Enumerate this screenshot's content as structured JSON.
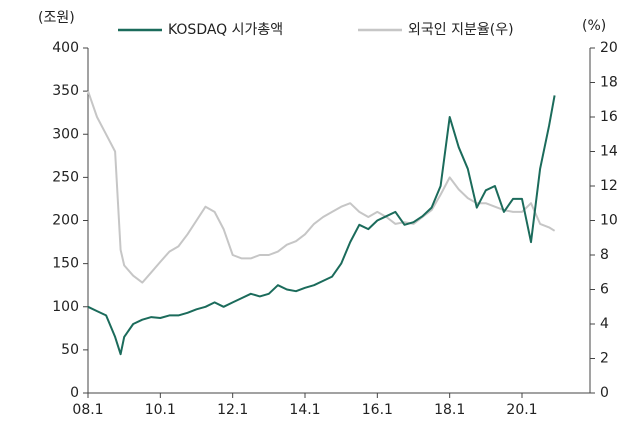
{
  "chart_data": {
    "type": "line",
    "y_label": "(조원)",
    "y2_label": "(%)",
    "x": [
      2008,
      2008.25,
      2008.5,
      2008.75,
      2008.9,
      2009,
      2009.25,
      2009.5,
      2009.75,
      2010,
      2010.25,
      2010.5,
      2010.75,
      2011,
      2011.25,
      2011.5,
      2011.75,
      2012,
      2012.25,
      2012.5,
      2012.75,
      2013,
      2013.25,
      2013.5,
      2013.75,
      2014,
      2014.25,
      2014.5,
      2014.75,
      2015,
      2015.25,
      2015.5,
      2015.75,
      2016,
      2016.25,
      2016.5,
      2016.75,
      2017,
      2017.25,
      2017.5,
      2017.75,
      2018,
      2018.25,
      2018.5,
      2018.75,
      2019,
      2019.25,
      2019.5,
      2019.75,
      2020,
      2020.25,
      2020.5,
      2020.75,
      2020.9
    ],
    "series": [
      {
        "name": "KOSDAQ 시가총액",
        "color": "#1b6b5b",
        "values": [
          100,
          95,
          90,
          65,
          45,
          65,
          80,
          85,
          88,
          87,
          90,
          90,
          93,
          97,
          100,
          105,
          100,
          105,
          110,
          115,
          112,
          115,
          125,
          120,
          118,
          122,
          125,
          130,
          135,
          150,
          175,
          195,
          190,
          200,
          205,
          210,
          195,
          198,
          205,
          215,
          240,
          320,
          285,
          260,
          215,
          235,
          240,
          210,
          225,
          225,
          175,
          260,
          310,
          345
        ]
      },
      {
        "name": "외국인 지분율(우)",
        "color": "#c6c6c6",
        "axis": "y2",
        "values": [
          17.5,
          16,
          15,
          14,
          8.3,
          7.4,
          6.8,
          6.4,
          7,
          7.6,
          8.2,
          8.5,
          9.2,
          10,
          10.8,
          10.5,
          9.5,
          8,
          7.8,
          7.8,
          8,
          8,
          8.2,
          8.6,
          8.8,
          9.2,
          9.8,
          10.2,
          10.5,
          10.8,
          11,
          10.5,
          10.2,
          10.5,
          10.2,
          9.8,
          9.9,
          9.8,
          10.2,
          10.6,
          11.5,
          12.5,
          11.8,
          11.3,
          11,
          11,
          10.8,
          10.6,
          10.5,
          10.5,
          11,
          9.8,
          9.6,
          9.4
        ]
      }
    ],
    "xlim": [
      2008,
      2021.88
    ],
    "xticks": [
      {
        "value": 2008,
        "label": "08.1"
      },
      {
        "value": 2010,
        "label": "10.1"
      },
      {
        "value": 2012,
        "label": "12.1"
      },
      {
        "value": 2014,
        "label": "14.1"
      },
      {
        "value": 2016,
        "label": "16.1"
      },
      {
        "value": 2018,
        "label": "18.1"
      },
      {
        "value": 2020,
        "label": "20.1"
      }
    ],
    "ylim": [
      0,
      400
    ],
    "yticks": [
      0,
      50,
      100,
      150,
      200,
      250,
      300,
      350,
      400
    ],
    "y2lim": [
      0,
      20
    ],
    "y2ticks": [
      0,
      2,
      4,
      6,
      8,
      10,
      12,
      14,
      16,
      18,
      20
    ],
    "grid": false
  }
}
